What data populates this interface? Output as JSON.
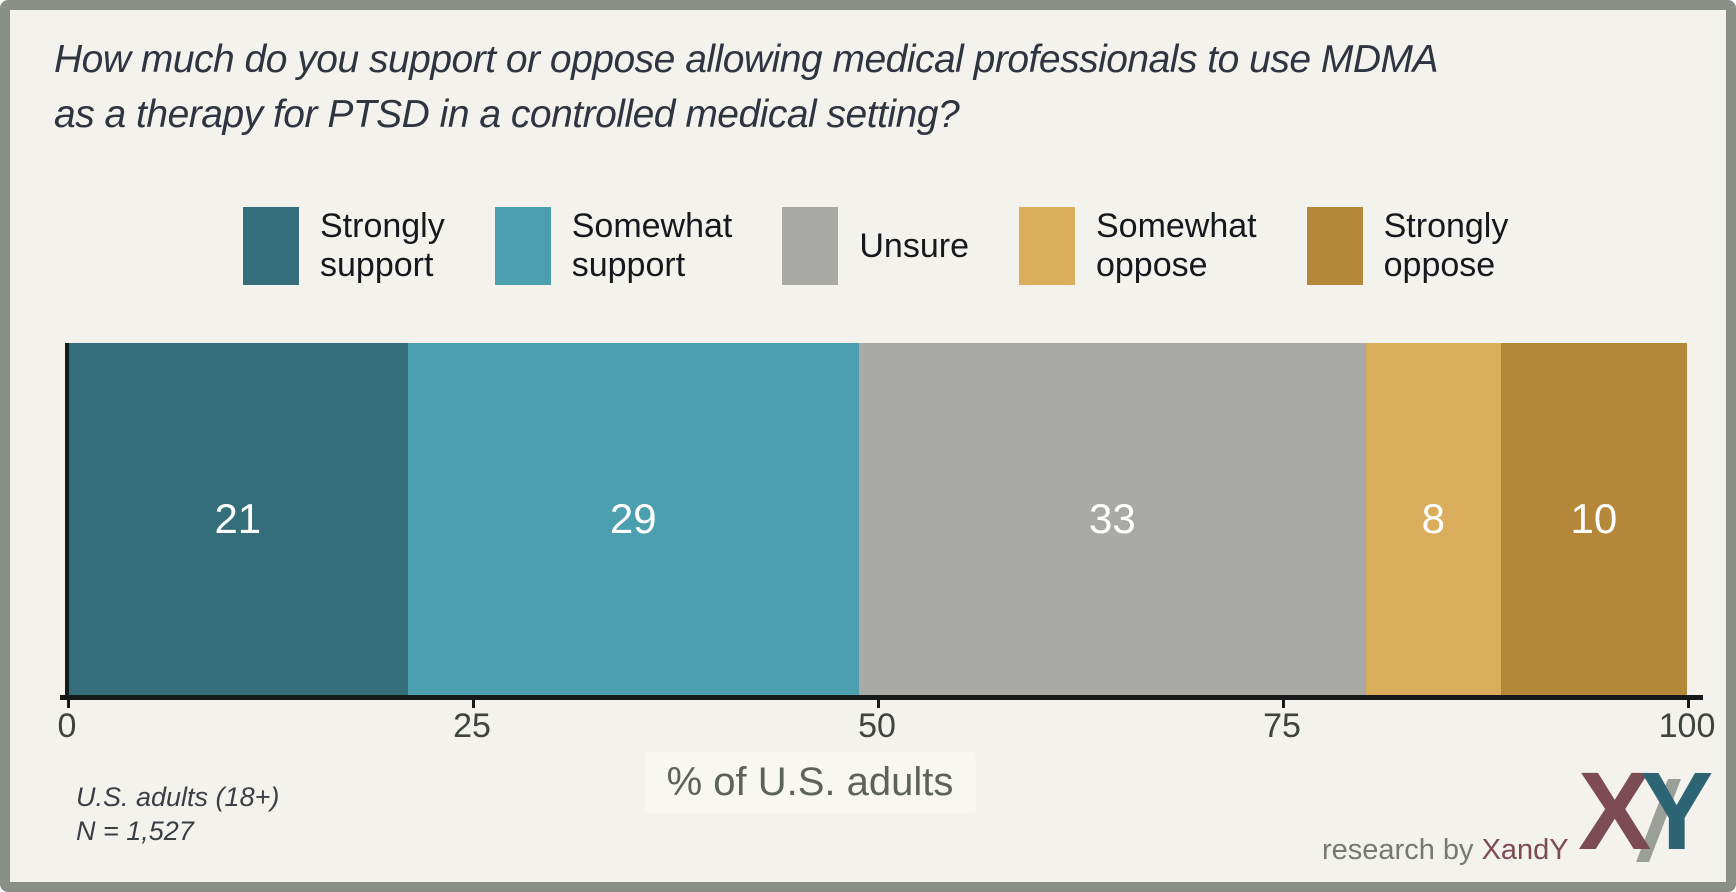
{
  "figure": {
    "title_line1": "How much do you support or oppose allowing medical professionals to use MDMA",
    "title_line2": "as a therapy for PTSD in a controlled medical setting?",
    "footnote_line1": "U.S. adults (18+)",
    "footnote_line2": "N = 1,527",
    "credit_prefix": "research by ",
    "credit_brand": "XandY",
    "logo_x": "X",
    "logo_y": "Y",
    "colors": {
      "background": "#f4f2ed",
      "frame_border": "#8a9088",
      "axis": "#17181a",
      "title_text": "#2e3440",
      "brand_maroon": "#7c4b54",
      "brand_teal": "#2d6574",
      "brand_gray": "#9aa099"
    }
  },
  "chart_data": {
    "type": "bar",
    "variant": "horizontal_stacked_single_bar",
    "title": "How much do you support or oppose allowing medical professionals to use MDMA as a therapy for PTSD in a controlled medical setting?",
    "categories": [
      "Strongly support",
      "Somewhat support",
      "Unsure",
      "Somewhat oppose",
      "Strongly oppose"
    ],
    "series": [
      {
        "name": "Strongly support",
        "label_line1": "Strongly",
        "label_line2": "support",
        "value": 21,
        "color": "#336e7a"
      },
      {
        "name": "Somewhat support",
        "label_line1": "Somewhat",
        "label_line2": "support",
        "value": 29,
        "color": "#4b9fae"
      },
      {
        "name": "Unsure",
        "label_line1": "Unsure",
        "label_line2": "",
        "value": 33,
        "color": "#a9aaa5"
      },
      {
        "name": "Somewhat oppose",
        "label_line1": "Somewhat",
        "label_line2": "oppose",
        "value": 8,
        "color": "#d9ad5c"
      },
      {
        "name": "Strongly oppose",
        "label_line1": "Strongly",
        "label_line2": "oppose",
        "value": 10,
        "color": "#b48838"
      }
    ],
    "x_ticks": [
      "0",
      "25",
      "50",
      "75",
      "100"
    ],
    "xlim": [
      0,
      100
    ],
    "xlabel": "% of U.S. adults",
    "grid": false,
    "legend_position": "top",
    "value_labels": "inside-white",
    "sample_note": "U.S. adults (18+), N = 1,527"
  }
}
